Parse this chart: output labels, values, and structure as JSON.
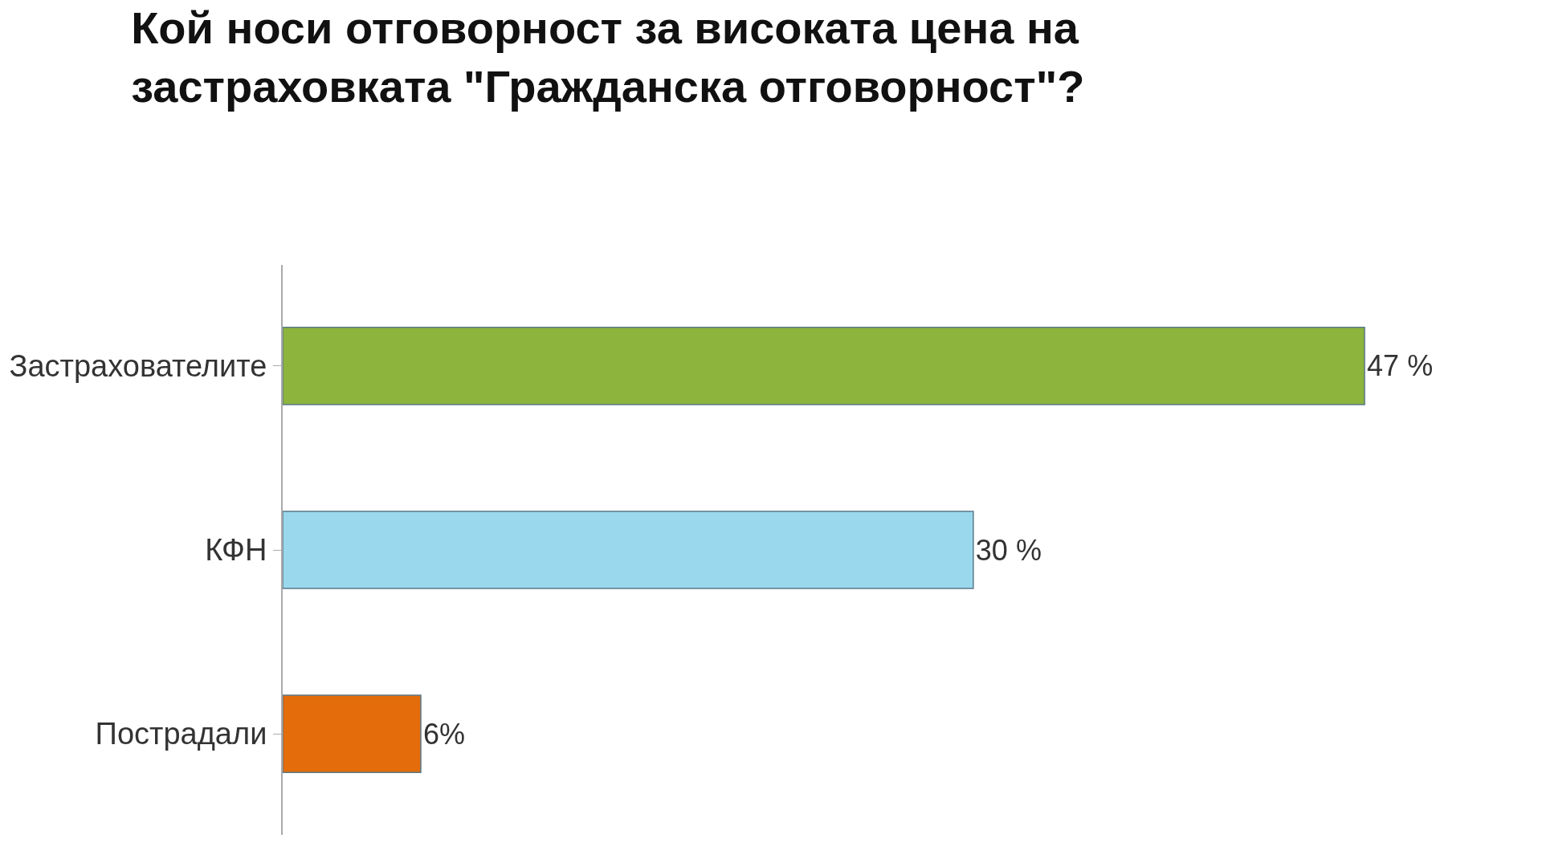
{
  "chart_data": {
    "type": "bar",
    "orientation": "horizontal",
    "title": "Кой носи отговорност за високата цена на\nзастраховката \"Гражданска отговорност\"?",
    "categories": [
      "Застрахователите",
      "КФН",
      "Пострадали"
    ],
    "values": [
      47,
      30,
      6
    ],
    "colors": [
      "#8db43c",
      "#9ad8ee",
      "#e46c0a"
    ],
    "value_labels": [
      "47 %",
      "30 %",
      "6%"
    ],
    "tick_labels": "y"
  }
}
